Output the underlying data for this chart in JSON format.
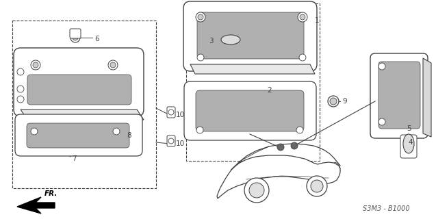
{
  "bg_color": "#ffffff",
  "line_color": "#404040",
  "gray": "#b0b0b0",
  "part_code": "S3M3 - B1000",
  "fig_w": 6.37,
  "fig_h": 3.2,
  "dpi": 100
}
